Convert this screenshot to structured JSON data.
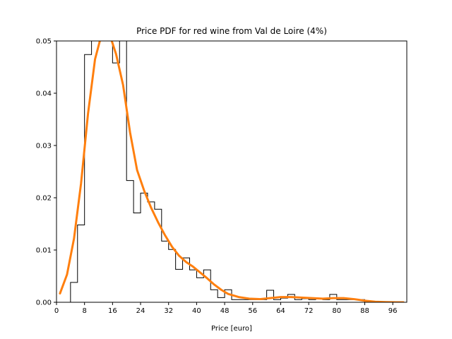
{
  "chart_data": {
    "type": "line",
    "title": "Price PDF for red wine from Val de Loire (4%)",
    "xlabel": "Price [euro]",
    "ylabel": "",
    "xlim": [
      0,
      100
    ],
    "ylim": [
      0,
      0.05
    ],
    "x_ticks": [
      0,
      8,
      16,
      24,
      32,
      40,
      48,
      56,
      64,
      72,
      80,
      88,
      96
    ],
    "y_ticks": [
      0.0,
      0.01,
      0.02,
      0.03,
      0.04,
      0.05
    ],
    "y_tick_labels": [
      "0.00",
      "0.01",
      "0.02",
      "0.03",
      "0.04",
      "0.05"
    ],
    "grid": false,
    "series": [
      {
        "kind": "histogram-step",
        "color": "#000000",
        "bin_edges": [
          0,
          2,
          4,
          6,
          8,
          10,
          12,
          14,
          16,
          18,
          20,
          22,
          24,
          26,
          28,
          30,
          32,
          34,
          36,
          38,
          40,
          42,
          44,
          46,
          48,
          50,
          52,
          54,
          56,
          58,
          60,
          62,
          64,
          66,
          68,
          70,
          72,
          74,
          76,
          78,
          80,
          82,
          84,
          86,
          88,
          90,
          92,
          94,
          96,
          98,
          100
        ],
        "values": [
          0,
          0,
          0.0038,
          0.0148,
          0.0474,
          0.0543,
          0.0543,
          0.0543,
          0.0458,
          0.0543,
          0.0233,
          0.0171,
          0.0209,
          0.0192,
          0.0178,
          0.0117,
          0.0101,
          0.0063,
          0.0085,
          0.0062,
          0.0047,
          0.0062,
          0.0024,
          0.0009,
          0.0024,
          0.0005,
          0.0005,
          0.0005,
          0.0005,
          0.0005,
          0.0023,
          0.0005,
          0.0008,
          0.0015,
          0.0005,
          0.0007,
          0.0005,
          0.0007,
          0.0005,
          0.0015,
          0.0005,
          0.0005,
          0.0005,
          0.0005,
          0,
          0,
          0,
          0,
          0,
          0
        ]
      },
      {
        "kind": "kde-line",
        "color": "#ff7f0e",
        "x": [
          1,
          3,
          5,
          7,
          9,
          11,
          13,
          15,
          17,
          19,
          21,
          23,
          25,
          27,
          29,
          31,
          33,
          35,
          37,
          39,
          41,
          43,
          45,
          47,
          49,
          52,
          55,
          58,
          61,
          64,
          67,
          70,
          73,
          76,
          79,
          82,
          85,
          88,
          91,
          94,
          97,
          99
        ],
        "y": [
          0.0017,
          0.0053,
          0.0122,
          0.0227,
          0.0361,
          0.0465,
          0.0516,
          0.0516,
          0.0475,
          0.0416,
          0.0325,
          0.0253,
          0.0214,
          0.0181,
          0.0153,
          0.0128,
          0.0106,
          0.0089,
          0.0077,
          0.0068,
          0.0057,
          0.0046,
          0.0034,
          0.0024,
          0.0016,
          0.001,
          0.0007,
          0.0006,
          0.0008,
          0.001,
          0.001,
          0.0009,
          0.0008,
          0.0007,
          0.0008,
          0.0008,
          0.0006,
          0.0003,
          0.0001,
          3e-05,
          0.0,
          0.0
        ]
      }
    ]
  }
}
